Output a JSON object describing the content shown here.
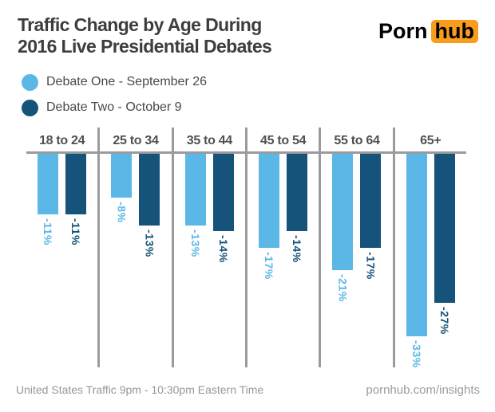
{
  "header": {
    "title_line1": "Traffic Change by Age During",
    "title_line2": "2016 Live Presidential Debates",
    "logo": {
      "part1": "Porn",
      "part2": "hub"
    }
  },
  "legend": [
    {
      "label": "Debate One - September 26",
      "color": "#5bb8e6"
    },
    {
      "label": "Debate Two - October 9",
      "color": "#16537a"
    }
  ],
  "chart_data": {
    "type": "bar",
    "orientation": "vertical",
    "title": "Traffic Change by Age During 2016 Live Presidential Debates",
    "categories": [
      "18 to 24",
      "25 to 34",
      "35 to 44",
      "45 to 54",
      "55 to 64",
      "65+"
    ],
    "series": [
      {
        "name": "Debate One - September 26",
        "color": "#5bb8e6",
        "values": [
          -11,
          -8,
          -13,
          -17,
          -21,
          -33
        ]
      },
      {
        "name": "Debate Two - October 9",
        "color": "#16537a",
        "values": [
          -11,
          -13,
          -14,
          -14,
          -17,
          -27
        ]
      }
    ],
    "value_label_suffix": "%",
    "xlabel": "",
    "ylabel": "",
    "ylim": [
      -35,
      0
    ],
    "baseline": 0,
    "grid": false,
    "legend_position": "top-left"
  },
  "footer": {
    "left": "United States Traffic  9pm - 10:30pm Eastern Time",
    "right": "pornhub.com/insights"
  },
  "colors": {
    "debate_one": "#5bb8e6",
    "debate_two": "#16537a",
    "axis": "#9b9b9d",
    "logo_orange": "#f89c1c",
    "title_text": "#3d3d3f"
  }
}
